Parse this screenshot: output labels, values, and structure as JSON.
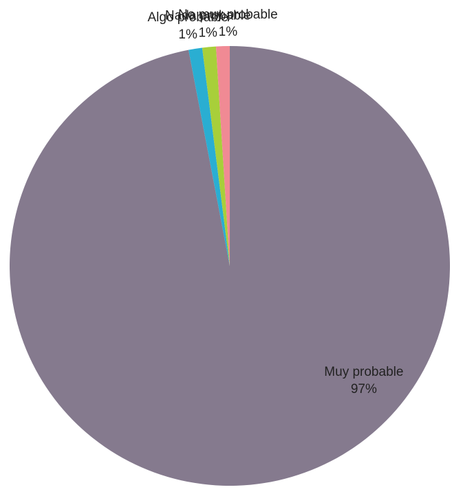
{
  "chart_data": {
    "type": "pie",
    "title": "",
    "slices": [
      {
        "label": "Muy probable",
        "value": 97,
        "percent_label": "97%",
        "color": "#857a8e"
      },
      {
        "label": "Algo probable",
        "value": 1,
        "percent_label": "1%",
        "color": "#2aaed2"
      },
      {
        "label": "Nada probable",
        "value": 1,
        "percent_label": "1%",
        "color": "#a8cf3a"
      },
      {
        "label": "No muy probable",
        "value": 1,
        "percent_label": "1%",
        "color": "#f08a94"
      }
    ],
    "legend": "none"
  }
}
